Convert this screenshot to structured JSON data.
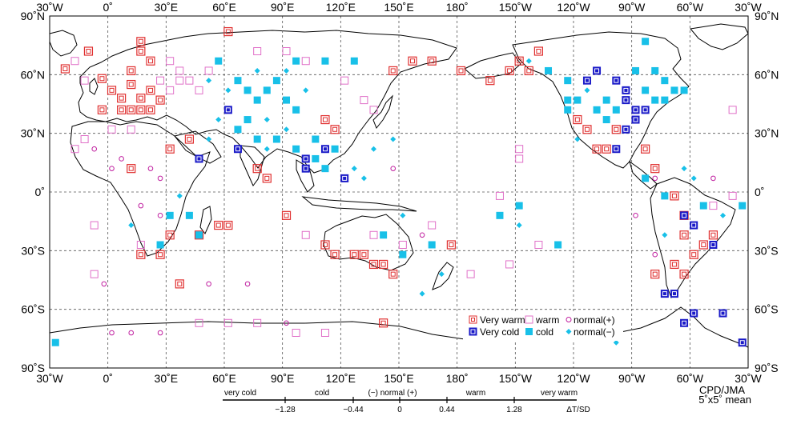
{
  "map": {
    "extent": {
      "lon_min": -30,
      "lon_max": 330,
      "lat_min": -90,
      "lat_max": 90
    },
    "top_lon_labels": [
      "30˚W",
      "0˚",
      "30˚E",
      "60˚E",
      "90˚E",
      "120˚E",
      "150˚E",
      "180˚",
      "150˚W",
      "120˚W",
      "90˚W",
      "60˚W",
      "30˚W"
    ],
    "bottom_lon_labels": [
      "30˚W",
      "0˚",
      "30˚E",
      "60˚E",
      "90˚E",
      "120˚E",
      "150˚E",
      "180˚",
      "150˚W",
      "120˚W",
      "90˚W",
      "60˚W",
      "30˚W"
    ],
    "lat_labels": [
      "90˚N",
      "60˚N",
      "30˚N",
      "0˚",
      "30˚S",
      "60˚S",
      "90˚S"
    ],
    "colors": {
      "very_warm": "#e03030",
      "warm": "#e070c8",
      "normal_plus": "#c020a0",
      "very_cold": "#1a1ac8",
      "cold": "#18c0e8",
      "normal_minus": "#18c0e8",
      "coast": "#000000",
      "grid": "#555555"
    }
  },
  "legend": {
    "very_warm": "Very warm",
    "very_cold": "Very cold",
    "warm": "warm",
    "cold": "cold",
    "normal_plus": "normal(+)",
    "normal_minus": "normal(−)"
  },
  "scale": {
    "categories": [
      "very cold",
      "cold",
      "(−) normal (+)",
      "warm",
      "very warm"
    ],
    "ticks": [
      "−1.28",
      "−0.44",
      "0",
      "0.44",
      "1.28"
    ],
    "unit": "ΔT/SD"
  },
  "credit": {
    "line1": "CPD/JMA",
    "line2": "5˚x5˚ mean"
  },
  "stations": [
    {
      "lon": -22,
      "lat": 63,
      "cat": "very_warm"
    },
    {
      "lon": -10,
      "lat": 72,
      "cat": "very_warm"
    },
    {
      "lon": -3,
      "lat": 58,
      "cat": "very_warm"
    },
    {
      "lon": 2,
      "lat": 52,
      "cat": "very_warm"
    },
    {
      "lon": 7,
      "lat": 48,
      "cat": "very_warm"
    },
    {
      "lon": 12,
      "lat": 55,
      "cat": "very_warm"
    },
    {
      "lon": 17,
      "lat": 48,
      "cat": "very_warm"
    },
    {
      "lon": 22,
      "lat": 52,
      "cat": "very_warm"
    },
    {
      "lon": 27,
      "lat": 47,
      "cat": "very_warm"
    },
    {
      "lon": 17,
      "lat": 42,
      "cat": "very_warm"
    },
    {
      "lon": 7,
      "lat": 42,
      "cat": "very_warm"
    },
    {
      "lon": -3,
      "lat": 42,
      "cat": "very_warm"
    },
    {
      "lon": 12,
      "lat": 42,
      "cat": "very_warm"
    },
    {
      "lon": 22,
      "lat": 42,
      "cat": "very_warm"
    },
    {
      "lon": 17,
      "lat": 77,
      "cat": "very_warm"
    },
    {
      "lon": 17,
      "lat": 72,
      "cat": "very_warm"
    },
    {
      "lon": 22,
      "lat": 67,
      "cat": "very_warm"
    },
    {
      "lon": 12,
      "lat": 62,
      "cat": "very_warm"
    },
    {
      "lon": 62,
      "lat": 82,
      "cat": "very_warm"
    },
    {
      "lon": 32,
      "lat": 22,
      "cat": "very_warm"
    },
    {
      "lon": 12,
      "lat": 12,
      "cat": "very_warm"
    },
    {
      "lon": 42,
      "lat": 27,
      "cat": "very_warm"
    },
    {
      "lon": 77,
      "lat": 12,
      "cat": "very_warm"
    },
    {
      "lon": 82,
      "lat": 7,
      "cat": "very_warm"
    },
    {
      "lon": 112,
      "lat": 37,
      "cat": "very_warm"
    },
    {
      "lon": 117,
      "lat": 32,
      "cat": "very_warm"
    },
    {
      "lon": 147,
      "lat": 62,
      "cat": "very_warm"
    },
    {
      "lon": 157,
      "lat": 67,
      "cat": "very_warm"
    },
    {
      "lon": 167,
      "lat": 67,
      "cat": "very_warm"
    },
    {
      "lon": 182,
      "lat": 62,
      "cat": "very_warm"
    },
    {
      "lon": 197,
      "lat": 57,
      "cat": "very_warm"
    },
    {
      "lon": 207,
      "lat": 62,
      "cat": "very_warm"
    },
    {
      "lon": 212,
      "lat": 67,
      "cat": "very_warm"
    },
    {
      "lon": 217,
      "lat": 62,
      "cat": "very_warm"
    },
    {
      "lon": 222,
      "lat": 72,
      "cat": "very_warm"
    },
    {
      "lon": 242,
      "lat": 37,
      "cat": "very_warm"
    },
    {
      "lon": 247,
      "lat": 32,
      "cat": "very_warm"
    },
    {
      "lon": 252,
      "lat": 22,
      "cat": "very_warm"
    },
    {
      "lon": 257,
      "lat": 22,
      "cat": "very_warm"
    },
    {
      "lon": 262,
      "lat": 32,
      "cat": "very_warm"
    },
    {
      "lon": 277,
      "lat": 22,
      "cat": "very_warm"
    },
    {
      "lon": 282,
      "lat": 12,
      "cat": "very_warm"
    },
    {
      "lon": 292,
      "lat": -2,
      "cat": "very_warm"
    },
    {
      "lon": 297,
      "lat": -12,
      "cat": "very_warm"
    },
    {
      "lon": 297,
      "lat": -22,
      "cat": "very_warm"
    },
    {
      "lon": 302,
      "lat": -32,
      "cat": "very_warm"
    },
    {
      "lon": 307,
      "lat": -27,
      "cat": "very_warm"
    },
    {
      "lon": 312,
      "lat": -22,
      "cat": "very_warm"
    },
    {
      "lon": 292,
      "lat": -37,
      "cat": "very_warm"
    },
    {
      "lon": 297,
      "lat": -42,
      "cat": "very_warm"
    },
    {
      "lon": 282,
      "lat": -42,
      "cat": "very_warm"
    },
    {
      "lon": 17,
      "lat": -32,
      "cat": "very_warm"
    },
    {
      "lon": 27,
      "lat": -32,
      "cat": "very_warm"
    },
    {
      "lon": 32,
      "lat": -22,
      "cat": "very_warm"
    },
    {
      "lon": 47,
      "lat": -22,
      "cat": "very_warm"
    },
    {
      "lon": 57,
      "lat": -17,
      "cat": "very_warm"
    },
    {
      "lon": 62,
      "lat": -17,
      "cat": "very_warm"
    },
    {
      "lon": 37,
      "lat": -47,
      "cat": "very_warm"
    },
    {
      "lon": 92,
      "lat": -12,
      "cat": "very_warm"
    },
    {
      "lon": 112,
      "lat": -27,
      "cat": "very_warm"
    },
    {
      "lon": 117,
      "lat": -32,
      "cat": "very_warm"
    },
    {
      "lon": 127,
      "lat": -32,
      "cat": "very_warm"
    },
    {
      "lon": 132,
      "lat": -32,
      "cat": "very_warm"
    },
    {
      "lon": 137,
      "lat": -37,
      "cat": "very_warm"
    },
    {
      "lon": 142,
      "lat": -37,
      "cat": "very_warm"
    },
    {
      "lon": 147,
      "lat": -42,
      "cat": "very_warm"
    },
    {
      "lon": 177,
      "lat": -27,
      "cat": "very_warm"
    },
    {
      "lon": 142,
      "lat": -67,
      "cat": "very_warm"
    },
    {
      "lon": 47,
      "lat": 17,
      "cat": "very_cold"
    },
    {
      "lon": 62,
      "lat": 42,
      "cat": "very_cold"
    },
    {
      "lon": 67,
      "lat": 22,
      "cat": "very_cold"
    },
    {
      "lon": 102,
      "lat": 17,
      "cat": "very_cold"
    },
    {
      "lon": 102,
      "lat": 12,
      "cat": "very_cold"
    },
    {
      "lon": 112,
      "lat": 22,
      "cat": "very_cold"
    },
    {
      "lon": 122,
      "lat": 7,
      "cat": "very_cold"
    },
    {
      "lon": 247,
      "lat": 57,
      "cat": "very_cold"
    },
    {
      "lon": 252,
      "lat": 62,
      "cat": "very_cold"
    },
    {
      "lon": 262,
      "lat": 57,
      "cat": "very_cold"
    },
    {
      "lon": 267,
      "lat": 52,
      "cat": "very_cold"
    },
    {
      "lon": 267,
      "lat": 47,
      "cat": "very_cold"
    },
    {
      "lon": 272,
      "lat": 42,
      "cat": "very_cold"
    },
    {
      "lon": 277,
      "lat": 42,
      "cat": "very_cold"
    },
    {
      "lon": 272,
      "lat": 37,
      "cat": "very_cold"
    },
    {
      "lon": 267,
      "lat": 32,
      "cat": "very_cold"
    },
    {
      "lon": 262,
      "lat": 22,
      "cat": "very_cold"
    },
    {
      "lon": 297,
      "lat": -12,
      "cat": "very_cold"
    },
    {
      "lon": 302,
      "lat": -17,
      "cat": "very_cold"
    },
    {
      "lon": 312,
      "lat": -27,
      "cat": "very_cold"
    },
    {
      "lon": 287,
      "lat": -52,
      "cat": "very_cold"
    },
    {
      "lon": 292,
      "lat": -52,
      "cat": "very_cold"
    },
    {
      "lon": 297,
      "lat": -67,
      "cat": "very_cold"
    },
    {
      "lon": 302,
      "lat": -62,
      "cat": "very_cold"
    },
    {
      "lon": 317,
      "lat": -62,
      "cat": "very_cold"
    },
    {
      "lon": 327,
      "lat": -77,
      "cat": "very_cold"
    },
    {
      "lon": -17,
      "lat": 67,
      "cat": "warm"
    },
    {
      "lon": -12,
      "lat": 57,
      "cat": "warm"
    },
    {
      "lon": 27,
      "lat": 57,
      "cat": "warm"
    },
    {
      "lon": 32,
      "lat": 52,
      "cat": "warm"
    },
    {
      "lon": 37,
      "lat": 57,
      "cat": "warm"
    },
    {
      "lon": 42,
      "lat": 57,
      "cat": "warm"
    },
    {
      "lon": 47,
      "lat": 52,
      "cat": "warm"
    },
    {
      "lon": 37,
      "lat": 62,
      "cat": "warm"
    },
    {
      "lon": 32,
      "lat": 67,
      "cat": "warm"
    },
    {
      "lon": 52,
      "lat": 62,
      "cat": "warm"
    },
    {
      "lon": -17,
      "lat": 22,
      "cat": "warm"
    },
    {
      "lon": -12,
      "lat": 27,
      "cat": "warm"
    },
    {
      "lon": 2,
      "lat": 32,
      "cat": "warm"
    },
    {
      "lon": 12,
      "lat": 32,
      "cat": "warm"
    },
    {
      "lon": -7,
      "lat": -17,
      "cat": "warm"
    },
    {
      "lon": -7,
      "lat": -42,
      "cat": "warm"
    },
    {
      "lon": 17,
      "lat": -27,
      "cat": "warm"
    },
    {
      "lon": 77,
      "lat": 72,
      "cat": "warm"
    },
    {
      "lon": 92,
      "lat": 72,
      "cat": "warm"
    },
    {
      "lon": 102,
      "lat": 67,
      "cat": "warm"
    },
    {
      "lon": 122,
      "lat": 57,
      "cat": "warm"
    },
    {
      "lon": 132,
      "lat": 47,
      "cat": "warm"
    },
    {
      "lon": 137,
      "lat": 42,
      "cat": "warm"
    },
    {
      "lon": 102,
      "lat": -22,
      "cat": "warm"
    },
    {
      "lon": 137,
      "lat": -22,
      "cat": "warm"
    },
    {
      "lon": 152,
      "lat": -27,
      "cat": "warm"
    },
    {
      "lon": 167,
      "lat": -17,
      "cat": "warm"
    },
    {
      "lon": 187,
      "lat": -42,
      "cat": "warm"
    },
    {
      "lon": 207,
      "lat": -37,
      "cat": "warm"
    },
    {
      "lon": 212,
      "lat": 22,
      "cat": "warm"
    },
    {
      "lon": 212,
      "lat": 17,
      "cat": "warm"
    },
    {
      "lon": 222,
      "lat": -27,
      "cat": "warm"
    },
    {
      "lon": 202,
      "lat": -2,
      "cat": "warm"
    },
    {
      "lon": 322,
      "lat": 42,
      "cat": "warm"
    },
    {
      "lon": 312,
      "lat": -7,
      "cat": "warm"
    },
    {
      "lon": 322,
      "lat": -2,
      "cat": "warm"
    },
    {
      "lon": 47,
      "lat": -67,
      "cat": "warm"
    },
    {
      "lon": 77,
      "lat": -67,
      "cat": "warm"
    },
    {
      "lon": 97,
      "lat": -72,
      "cat": "warm"
    },
    {
      "lon": 112,
      "lat": -72,
      "cat": "warm"
    },
    {
      "lon": 62,
      "lat": -67,
      "cat": "warm"
    },
    {
      "lon": 2,
      "lat": 12,
      "cat": "normal_plus"
    },
    {
      "lon": 7,
      "lat": 17,
      "cat": "normal_plus"
    },
    {
      "lon": 22,
      "lat": 12,
      "cat": "normal_plus"
    },
    {
      "lon": 27,
      "lat": 7,
      "cat": "normal_plus"
    },
    {
      "lon": -7,
      "lat": 22,
      "cat": "normal_plus"
    },
    {
      "lon": 17,
      "lat": -7,
      "cat": "normal_plus"
    },
    {
      "lon": 27,
      "lat": -12,
      "cat": "normal_plus"
    },
    {
      "lon": 52,
      "lat": -47,
      "cat": "normal_plus"
    },
    {
      "lon": 72,
      "lat": -47,
      "cat": "normal_plus"
    },
    {
      "lon": -2,
      "lat": -47,
      "cat": "normal_plus"
    },
    {
      "lon": 2,
      "lat": -72,
      "cat": "normal_plus"
    },
    {
      "lon": 12,
      "lat": -72,
      "cat": "normal_plus"
    },
    {
      "lon": 27,
      "lat": -72,
      "cat": "normal_plus"
    },
    {
      "lon": 92,
      "lat": -67,
      "cat": "normal_plus"
    },
    {
      "lon": 147,
      "lat": 12,
      "cat": "normal_plus"
    },
    {
      "lon": 162,
      "lat": -22,
      "cat": "normal_plus"
    },
    {
      "lon": 272,
      "lat": -12,
      "cat": "normal_plus"
    },
    {
      "lon": 282,
      "lat": -32,
      "cat": "normal_plus"
    },
    {
      "lon": 282,
      "lat": 7,
      "cat": "normal_plus"
    },
    {
      "lon": 312,
      "lat": 7,
      "cat": "normal_plus"
    },
    {
      "lon": 57,
      "lat": 67,
      "cat": "cold"
    },
    {
      "lon": 67,
      "lat": 57,
      "cat": "cold"
    },
    {
      "lon": 72,
      "lat": 52,
      "cat": "cold"
    },
    {
      "lon": 77,
      "lat": 47,
      "cat": "cold"
    },
    {
      "lon": 82,
      "lat": 52,
      "cat": "cold"
    },
    {
      "lon": 87,
      "lat": 57,
      "cat": "cold"
    },
    {
      "lon": 92,
      "lat": 47,
      "cat": "cold"
    },
    {
      "lon": 97,
      "lat": 42,
      "cat": "cold"
    },
    {
      "lon": 72,
      "lat": 37,
      "cat": "cold"
    },
    {
      "lon": 67,
      "lat": 32,
      "cat": "cold"
    },
    {
      "lon": 77,
      "lat": 27,
      "cat": "cold"
    },
    {
      "lon": 87,
      "lat": 27,
      "cat": "cold"
    },
    {
      "lon": 97,
      "lat": 22,
      "cat": "cold"
    },
    {
      "lon": 107,
      "lat": 27,
      "cat": "cold"
    },
    {
      "lon": 117,
      "lat": 22,
      "cat": "cold"
    },
    {
      "lon": 107,
      "lat": 17,
      "cat": "cold"
    },
    {
      "lon": 112,
      "lat": 12,
      "cat": "cold"
    },
    {
      "lon": 97,
      "lat": 67,
      "cat": "cold"
    },
    {
      "lon": 112,
      "lat": 67,
      "cat": "cold"
    },
    {
      "lon": 127,
      "lat": 67,
      "cat": "cold"
    },
    {
      "lon": 42,
      "lat": -12,
      "cat": "cold"
    },
    {
      "lon": 47,
      "lat": -22,
      "cat": "cold"
    },
    {
      "lon": 27,
      "lat": -27,
      "cat": "cold"
    },
    {
      "lon": 32,
      "lat": -12,
      "cat": "cold"
    },
    {
      "lon": 142,
      "lat": -22,
      "cat": "cold"
    },
    {
      "lon": 152,
      "lat": -32,
      "cat": "cold"
    },
    {
      "lon": 167,
      "lat": -27,
      "cat": "cold"
    },
    {
      "lon": 202,
      "lat": -12,
      "cat": "cold"
    },
    {
      "lon": 212,
      "lat": -7,
      "cat": "cold"
    },
    {
      "lon": 232,
      "lat": -27,
      "cat": "cold"
    },
    {
      "lon": 237,
      "lat": 47,
      "cat": "cold"
    },
    {
      "lon": 237,
      "lat": 42,
      "cat": "cold"
    },
    {
      "lon": 242,
      "lat": 47,
      "cat": "cold"
    },
    {
      "lon": 252,
      "lat": 42,
      "cat": "cold"
    },
    {
      "lon": 257,
      "lat": 37,
      "cat": "cold"
    },
    {
      "lon": 257,
      "lat": 47,
      "cat": "cold"
    },
    {
      "lon": 262,
      "lat": 42,
      "cat": "cold"
    },
    {
      "lon": 277,
      "lat": 52,
      "cat": "cold"
    },
    {
      "lon": 282,
      "lat": 47,
      "cat": "cold"
    },
    {
      "lon": 287,
      "lat": 47,
      "cat": "cold"
    },
    {
      "lon": 292,
      "lat": 52,
      "cat": "cold"
    },
    {
      "lon": 297,
      "lat": 52,
      "cat": "cold"
    },
    {
      "lon": 237,
      "lat": 57,
      "cat": "cold"
    },
    {
      "lon": 227,
      "lat": 62,
      "cat": "cold"
    },
    {
      "lon": 272,
      "lat": 62,
      "cat": "cold"
    },
    {
      "lon": 277,
      "lat": 77,
      "cat": "cold"
    },
    {
      "lon": 282,
      "lat": 62,
      "cat": "cold"
    },
    {
      "lon": 287,
      "lat": 57,
      "cat": "cold"
    },
    {
      "lon": 277,
      "lat": 7,
      "cat": "cold"
    },
    {
      "lon": 287,
      "lat": -2,
      "cat": "cold"
    },
    {
      "lon": 307,
      "lat": -7,
      "cat": "cold"
    },
    {
      "lon": 327,
      "lat": -7,
      "cat": "cold"
    },
    {
      "lon": -27,
      "lat": -77,
      "cat": "cold"
    },
    {
      "lon": 52,
      "lat": 57,
      "cat": "normal_minus"
    },
    {
      "lon": 62,
      "lat": 52,
      "cat": "normal_minus"
    },
    {
      "lon": 77,
      "lat": 62,
      "cat": "normal_minus"
    },
    {
      "lon": 92,
      "lat": 62,
      "cat": "normal_minus"
    },
    {
      "lon": 102,
      "lat": 52,
      "cat": "normal_minus"
    },
    {
      "lon": 82,
      "lat": 37,
      "cat": "normal_minus"
    },
    {
      "lon": 92,
      "lat": 32,
      "cat": "normal_minus"
    },
    {
      "lon": 82,
      "lat": 22,
      "cat": "normal_minus"
    },
    {
      "lon": 57,
      "lat": 37,
      "cat": "normal_minus"
    },
    {
      "lon": 52,
      "lat": 27,
      "cat": "normal_minus"
    },
    {
      "lon": 127,
      "lat": 12,
      "cat": "normal_minus"
    },
    {
      "lon": 132,
      "lat": 7,
      "cat": "normal_minus"
    },
    {
      "lon": 137,
      "lat": 22,
      "cat": "normal_minus"
    },
    {
      "lon": 147,
      "lat": 27,
      "cat": "normal_minus"
    },
    {
      "lon": 152,
      "lat": -12,
      "cat": "normal_minus"
    },
    {
      "lon": 162,
      "lat": -52,
      "cat": "normal_minus"
    },
    {
      "lon": 172,
      "lat": -42,
      "cat": "normal_minus"
    },
    {
      "lon": 212,
      "lat": -17,
      "cat": "normal_minus"
    },
    {
      "lon": 242,
      "lat": 27,
      "cat": "normal_minus"
    },
    {
      "lon": 247,
      "lat": 52,
      "cat": "normal_minus"
    },
    {
      "lon": 297,
      "lat": 12,
      "cat": "normal_minus"
    },
    {
      "lon": 302,
      "lat": 7,
      "cat": "normal_minus"
    },
    {
      "lon": 317,
      "lat": -12,
      "cat": "normal_minus"
    },
    {
      "lon": 287,
      "lat": -22,
      "cat": "normal_minus"
    },
    {
      "lon": 12,
      "lat": -17,
      "cat": "normal_minus"
    },
    {
      "lon": 37,
      "lat": -2,
      "cat": "normal_minus"
    },
    {
      "lon": 217,
      "lat": 67,
      "cat": "normal_minus"
    },
    {
      "lon": 262,
      "lat": -77,
      "cat": "normal_minus"
    }
  ]
}
